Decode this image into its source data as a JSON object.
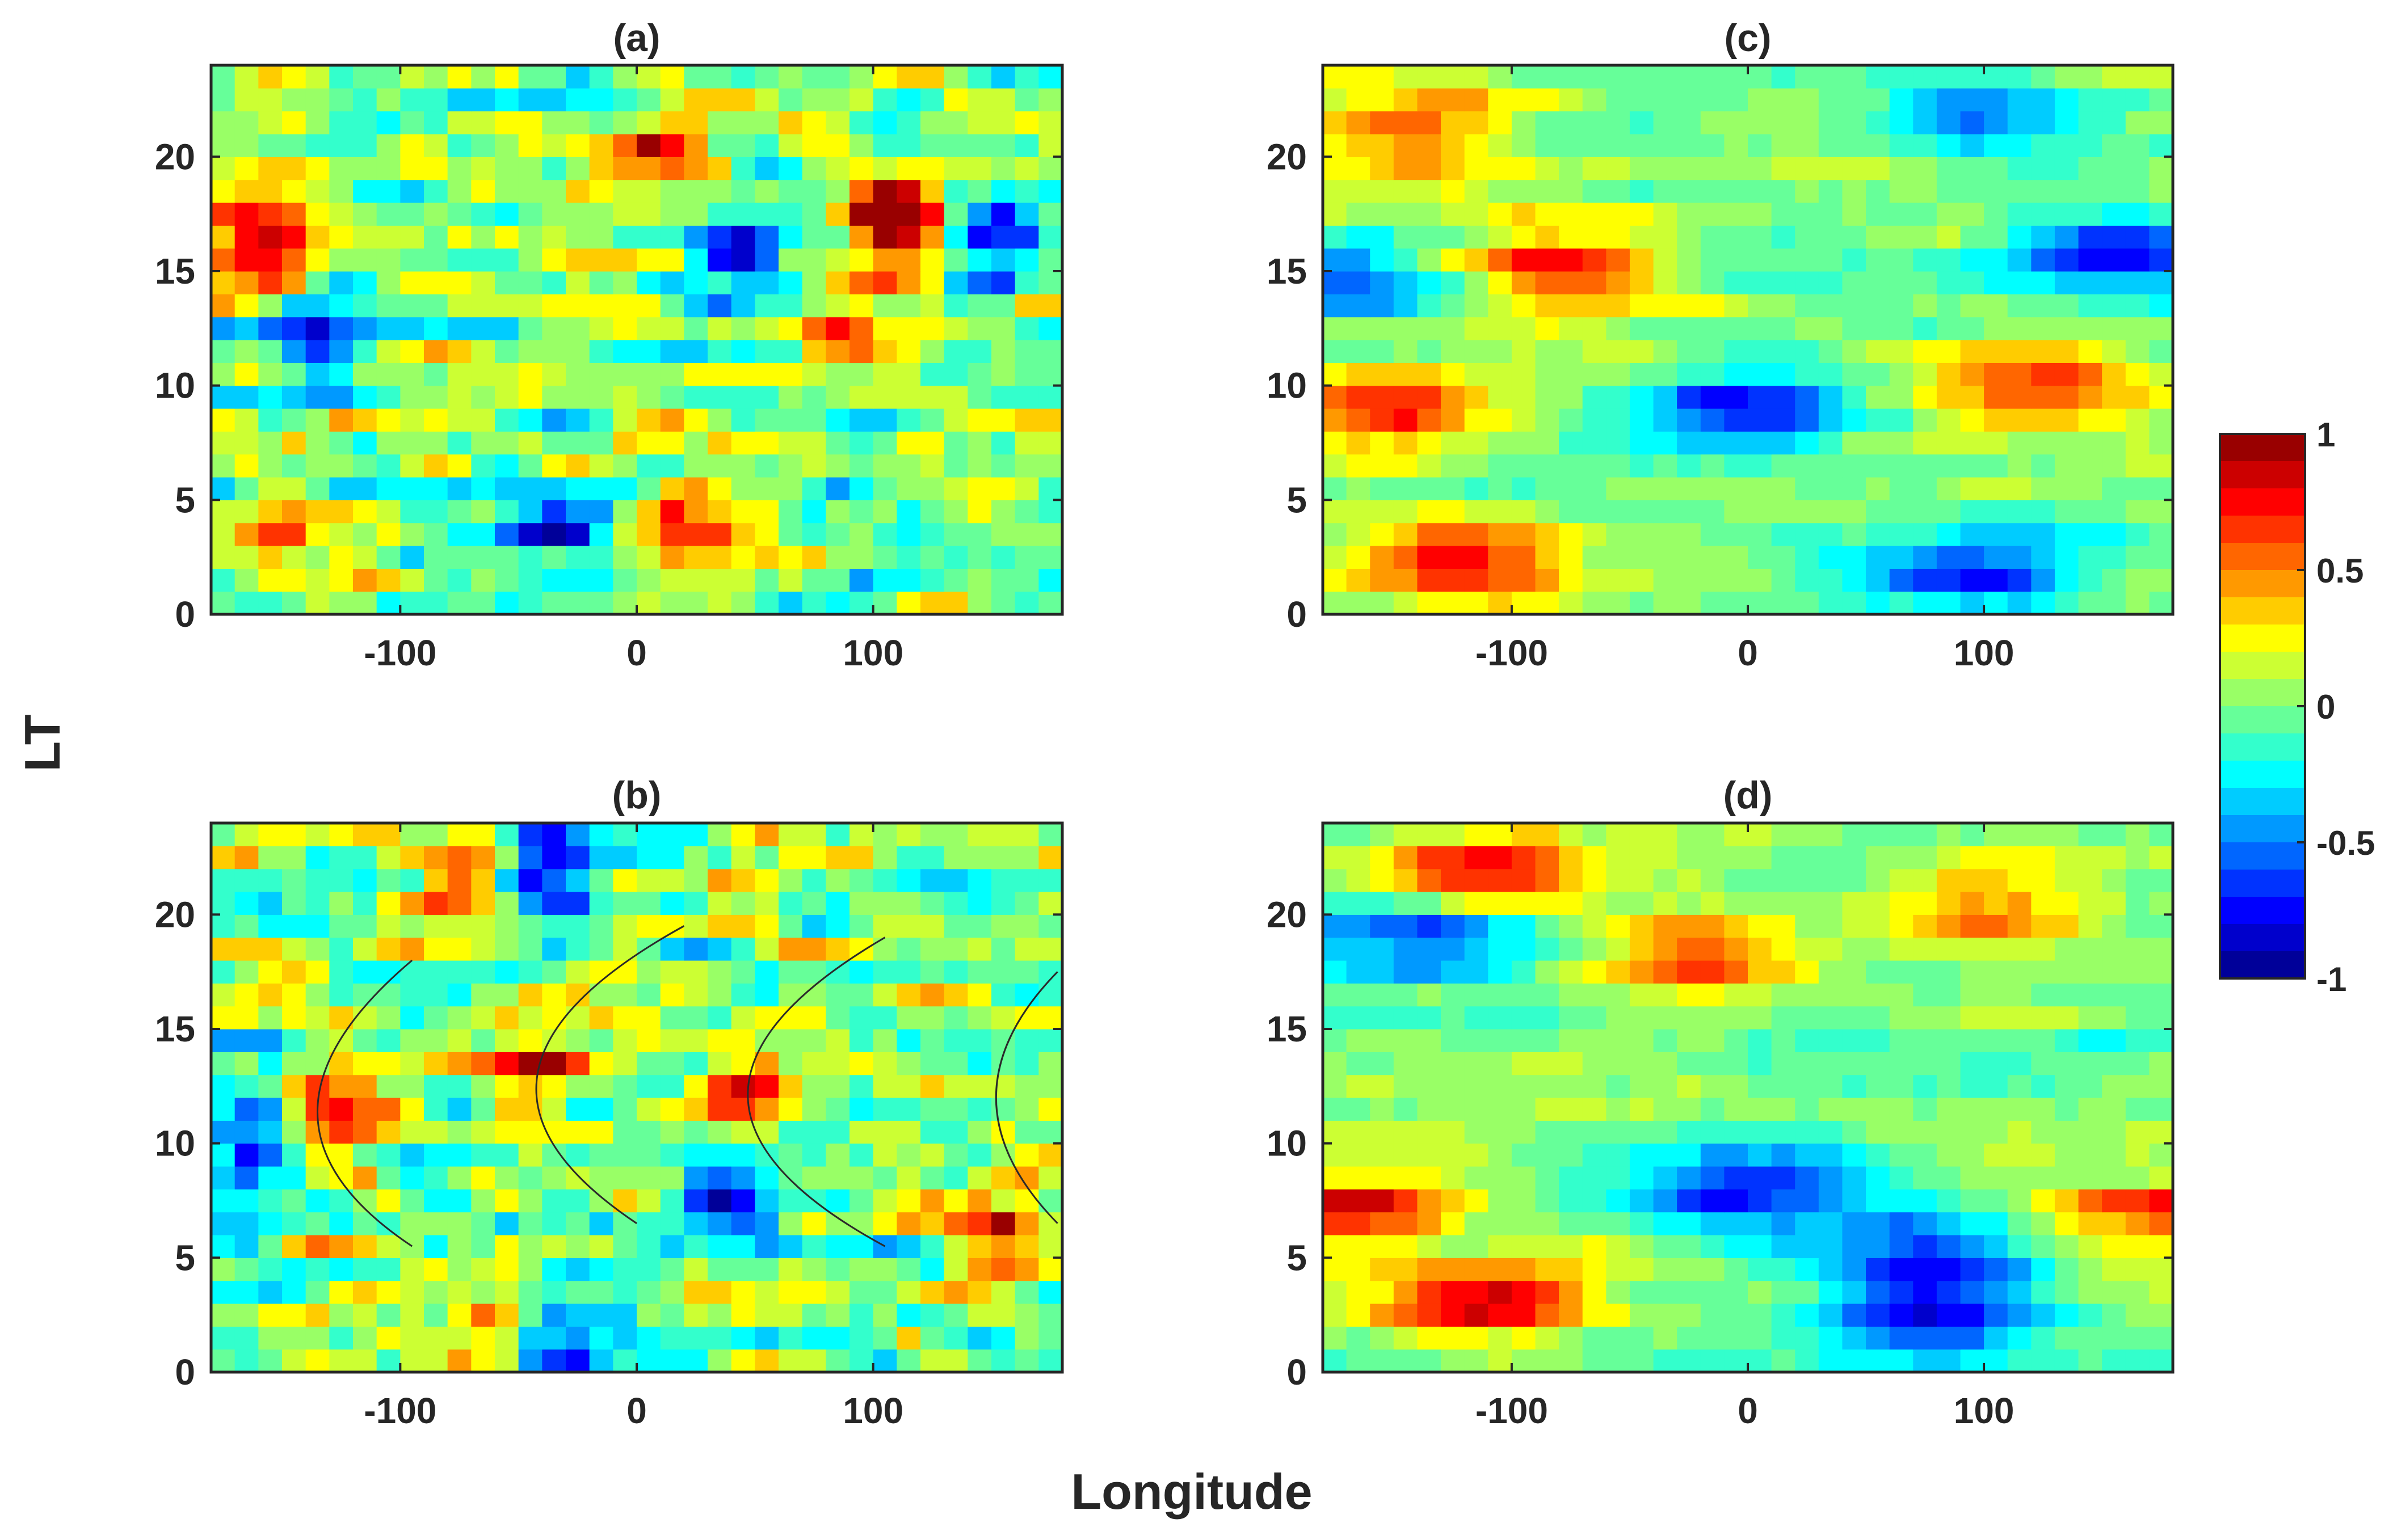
{
  "figure": {
    "ylabel": "LT",
    "xlabel": "Longitude",
    "colormap": "jet",
    "colors": {
      "axis": "#262626",
      "background": "#ffffff",
      "curve": "#2a2a2a"
    }
  },
  "chart_data": [
    {
      "type": "heatmap",
      "title": "(a)",
      "x_range": [
        -180,
        180
      ],
      "y_range": [
        0,
        24
      ],
      "xticks": [
        -100,
        0,
        100
      ],
      "yticks": [
        0,
        5,
        10,
        15,
        20
      ],
      "clim": [
        -1,
        1
      ],
      "cell_size": {
        "lon": 10,
        "lt": 1
      },
      "note_pattern": "fine-grained patchy anomalies",
      "features": [
        {
          "lon": -160,
          "lt": 16,
          "value": 0.9
        },
        {
          "lon": 10,
          "lt": 20,
          "value": 0.8
        },
        {
          "lon": 110,
          "lt": 17,
          "value": 0.95
        },
        {
          "lon": 150,
          "lt": 16,
          "value": -0.9
        },
        {
          "lon": 45,
          "lt": 16,
          "value": -0.8
        },
        {
          "lon": -140,
          "lt": 12,
          "value": -0.8
        },
        {
          "lon": 90,
          "lt": 12,
          "value": 0.6
        },
        {
          "lon": -30,
          "lt": 4,
          "value": -0.6
        },
        {
          "lon": 20,
          "lt": 3,
          "value": 0.6
        },
        {
          "lon": -150,
          "lt": 3,
          "value": 0.5
        }
      ]
    },
    {
      "type": "heatmap",
      "title": "(b)",
      "x_range": [
        -180,
        180
      ],
      "y_range": [
        0,
        24
      ],
      "xticks": [
        -100,
        0,
        100
      ],
      "yticks": [
        0,
        5,
        10,
        15,
        20
      ],
      "clim": [
        -1,
        1
      ],
      "cell_size": {
        "lon": 10,
        "lt": 1
      },
      "features": [
        {
          "lon": -130,
          "lt": 11,
          "value": 0.8
        },
        {
          "lon": -45,
          "lt": 13,
          "value": 0.75
        },
        {
          "lon": 45,
          "lt": 12,
          "value": 0.7
        },
        {
          "lon": -40,
          "lt": 22,
          "value": -0.9
        },
        {
          "lon": -60,
          "lt": 1,
          "value": 0.8
        },
        {
          "lon": -40,
          "lt": 1,
          "value": -0.9
        },
        {
          "lon": -70,
          "lt": 21,
          "value": 0.7
        },
        {
          "lon": -160,
          "lt": 10,
          "value": -0.6
        },
        {
          "lon": 40,
          "lt": 8,
          "value": -0.7
        },
        {
          "lon": 150,
          "lt": 6,
          "value": 0.7
        }
      ],
      "curves": [
        {
          "points": [
            [
              -95,
              5.5
            ],
            [
              -135,
              11
            ],
            [
              -95,
              18
            ]
          ]
        },
        {
          "points": [
            [
              0,
              6.5
            ],
            [
              -42,
              13
            ],
            [
              20,
              19.5
            ]
          ]
        },
        {
          "points": [
            [
              105,
              5.5
            ],
            [
              47,
              12
            ],
            [
              105,
              19
            ]
          ]
        },
        {
          "points": [
            [
              178,
              6.5
            ],
            [
              152,
              12
            ],
            [
              178,
              17.5
            ]
          ]
        }
      ]
    },
    {
      "type": "heatmap",
      "title": "(c)",
      "x_range": [
        -180,
        180
      ],
      "y_range": [
        0,
        24
      ],
      "xticks": [
        -100,
        0,
        100
      ],
      "yticks": [
        0,
        5,
        10,
        15,
        20
      ],
      "clim": [
        -1,
        1
      ],
      "cell_size": {
        "lon": 10,
        "lt": 1
      },
      "features": [
        {
          "lon": -120,
          "lt": 2,
          "value": 0.85
        },
        {
          "lon": -150,
          "lt": 9,
          "value": 0.7
        },
        {
          "lon": -80,
          "lt": 15,
          "value": 0.7
        },
        {
          "lon": -140,
          "lt": 21,
          "value": 0.6
        },
        {
          "lon": 0,
          "lt": 9,
          "value": -0.8
        },
        {
          "lon": 100,
          "lt": 2,
          "value": -0.7
        },
        {
          "lon": 120,
          "lt": 10,
          "value": 0.65
        },
        {
          "lon": 160,
          "lt": 16,
          "value": -0.75
        },
        {
          "lon": 100,
          "lt": 22,
          "value": -0.5
        },
        {
          "lon": -175,
          "lt": 15,
          "value": -0.6
        }
      ]
    },
    {
      "type": "heatmap",
      "title": "(d)",
      "x_range": [
        -180,
        180
      ],
      "y_range": [
        0,
        24
      ],
      "xticks": [
        -100,
        0,
        100
      ],
      "yticks": [
        0,
        5,
        10,
        15,
        20
      ],
      "clim": [
        -1,
        1
      ],
      "cell_size": {
        "lon": 10,
        "lt": 1
      },
      "features": [
        {
          "lon": -110,
          "lt": 3,
          "value": 0.85
        },
        {
          "lon": -110,
          "lt": 22,
          "value": 0.8
        },
        {
          "lon": -170,
          "lt": 7,
          "value": 0.75
        },
        {
          "lon": 70,
          "lt": 5,
          "value": -0.8
        },
        {
          "lon": 0,
          "lt": 8,
          "value": -0.75
        },
        {
          "lon": 80,
          "lt": 2,
          "value": -0.6
        },
        {
          "lon": -140,
          "lt": 19,
          "value": -0.65
        },
        {
          "lon": -20,
          "lt": 18,
          "value": 0.6
        },
        {
          "lon": 170,
          "lt": 7,
          "value": 0.6
        },
        {
          "lon": 100,
          "lt": 20,
          "value": 0.5
        }
      ]
    }
  ],
  "colorbar": {
    "ticks": [
      "1",
      "0.5",
      "0",
      "-0.5",
      "-1"
    ],
    "levels": 20
  }
}
